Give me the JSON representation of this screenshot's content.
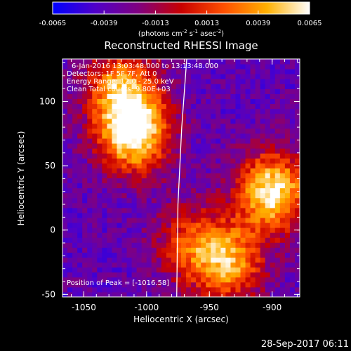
{
  "colorbar": {
    "tick_labels": [
      "-0.0065",
      "-0.0039",
      "-0.0013",
      "0.0013",
      "0.0039",
      "0.0065"
    ],
    "ticks": [
      -0.0065,
      -0.0039,
      -0.0013,
      0.0013,
      0.0039,
      0.0065
    ],
    "range": [
      -0.0065,
      0.0065
    ],
    "units_prefix": "(photons cm",
    "units_exp1": "-2",
    "units_mid": " s",
    "units_exp2": "-1",
    "units_mid2": " asec",
    "units_exp3": "-2",
    "units_suffix": ")",
    "colors": [
      "#0000ff",
      "#5000c8",
      "#800080",
      "#c80000",
      "#ff5000",
      "#ffb000",
      "#ffffff"
    ]
  },
  "chart_data": {
    "type": "heatmap",
    "title": "Reconstructed RHESSI Image",
    "xlabel": "Heliocentric X (arcsec)",
    "ylabel": "Heliocentric Y (arcsec)",
    "xlim": [
      -1067,
      -878
    ],
    "ylim": [
      -52,
      133
    ],
    "x_tick_labels": [
      "-1050",
      "-1000",
      "-950",
      "-900"
    ],
    "x_ticks": [
      -1050,
      -1000,
      -950,
      -900
    ],
    "y_tick_labels": [
      "-50",
      "0",
      "50",
      "100"
    ],
    "y_ticks": [
      -50,
      0,
      50,
      100
    ],
    "value_range": [
      -0.0065,
      0.0065
    ],
    "sources": [
      {
        "x": -1010,
        "y": 75,
        "value": 0.0065
      },
      {
        "x": -1020,
        "y": 110,
        "value": 0.0039
      },
      {
        "x": -900,
        "y": 30,
        "value": 0.0065
      },
      {
        "x": -935,
        "y": -25,
        "value": 0.0039
      },
      {
        "x": -965,
        "y": -10,
        "value": 0.0013
      }
    ],
    "limb_curve": [
      {
        "x": -968,
        "y": 133
      },
      {
        "x": -972,
        "y": 80
      },
      {
        "x": -975,
        "y": 20
      },
      {
        "x": -976,
        "y": -52
      }
    ],
    "annotations": {
      "time": "6-Jan-2016 13:03:48.000 to 13:13:48.000",
      "detectors": "Detectors: 1F 5F 7F, Att 0",
      "energy": "Energy Range: 12.0 - 25.0 keV",
      "method": "Clean     Total counts: 9.80E+03",
      "peak": "Position of Peak = [-1016.58]"
    }
  },
  "footer": {
    "timestamp": "28-Sep-2017 06:11"
  }
}
